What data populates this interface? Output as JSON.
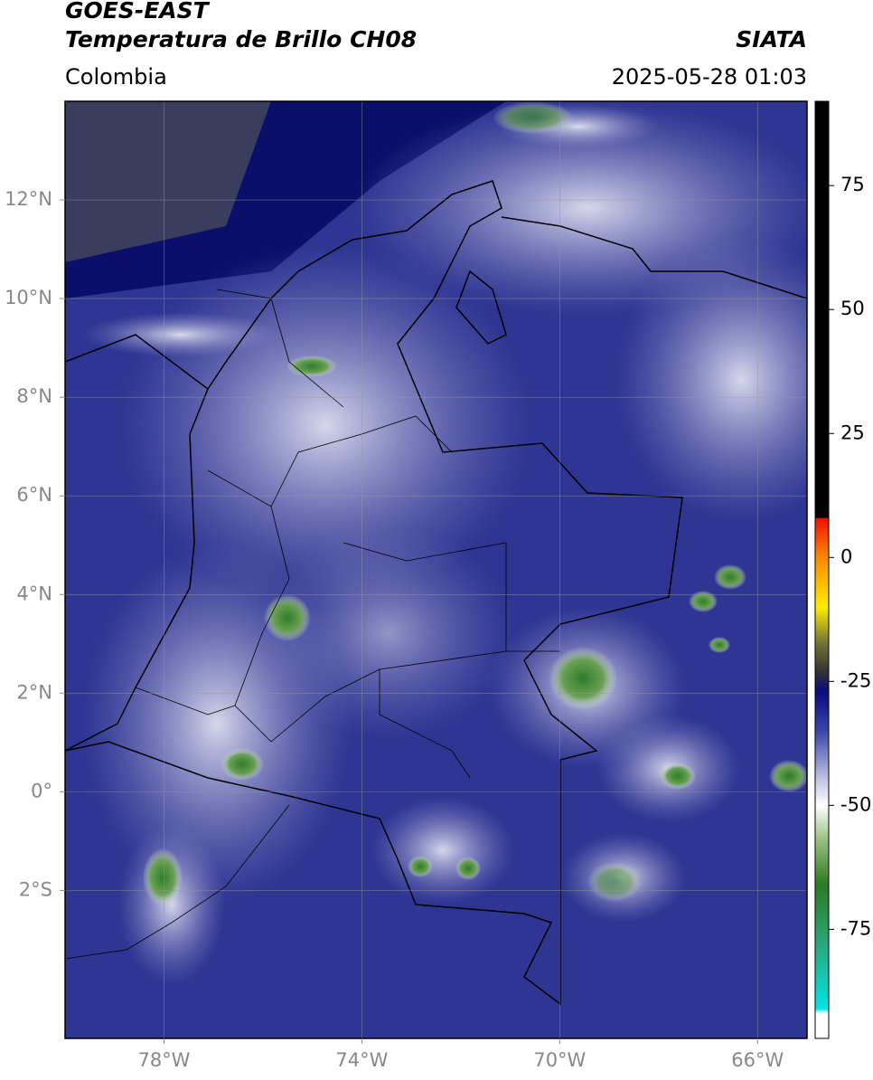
{
  "header": {
    "satellite": "GOES-EAST",
    "product": "Temperatura de Brillo CH08",
    "region": "Colombia",
    "source": "SIATA",
    "datetime": "2025-05-28 01:03"
  },
  "map": {
    "xlim": [
      -80,
      -65
    ],
    "ylim": [
      -5,
      14
    ],
    "xticks": [
      {
        "value": -78,
        "label": "78°W"
      },
      {
        "value": -74,
        "label": "74°W"
      },
      {
        "value": -70,
        "label": "70°W"
      },
      {
        "value": -66,
        "label": "66°W"
      }
    ],
    "yticks": [
      {
        "value": 12,
        "label": "12°N"
      },
      {
        "value": 10,
        "label": "10°N"
      },
      {
        "value": 8,
        "label": "8°N"
      },
      {
        "value": 6,
        "label": "6°N"
      },
      {
        "value": 4,
        "label": "4°N"
      },
      {
        "value": 2,
        "label": "2°N"
      },
      {
        "value": 0,
        "label": "0°"
      },
      {
        "value": -2,
        "label": "2°S"
      }
    ],
    "grid": true
  },
  "colorbar": {
    "lim": [
      -97,
      92
    ],
    "ticks": [
      75,
      50,
      25,
      0,
      -25,
      -50,
      -75
    ],
    "stops": [
      {
        "value": 92,
        "color": "#000000"
      },
      {
        "value": 8,
        "color": "#000000"
      },
      {
        "value": 7.9,
        "color": "#ee1100"
      },
      {
        "value": 0,
        "color": "#ff8800"
      },
      {
        "value": -10,
        "color": "#ffee00"
      },
      {
        "value": -17,
        "color": "#777733"
      },
      {
        "value": -23,
        "color": "#333333"
      },
      {
        "value": -27,
        "color": "#0a0a80"
      },
      {
        "value": -35,
        "color": "#3a46a8"
      },
      {
        "value": -45,
        "color": "#c4c6e4"
      },
      {
        "value": -50,
        "color": "#ffffff"
      },
      {
        "value": -57,
        "color": "#98c080"
      },
      {
        "value": -66,
        "color": "#2c7a22"
      },
      {
        "value": -80,
        "color": "#28b08a"
      },
      {
        "value": -91,
        "color": "#00e4e4"
      },
      {
        "value": -92,
        "color": "#ffffff"
      },
      {
        "value": -97,
        "color": "#ffffff"
      }
    ]
  }
}
